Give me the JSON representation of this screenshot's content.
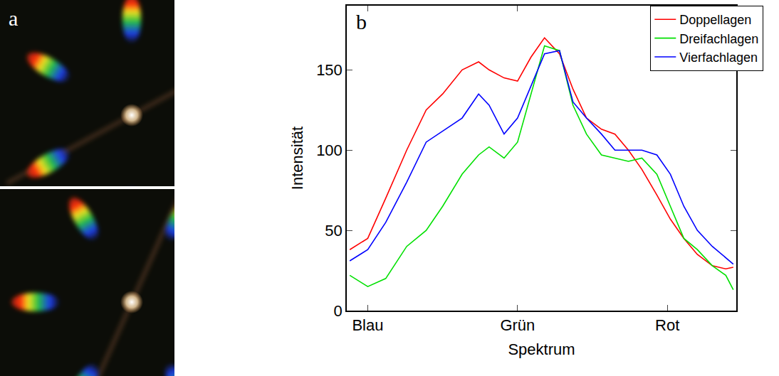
{
  "panel_a": {
    "label": "a"
  },
  "chart_data": {
    "type": "line",
    "panel_label": "b",
    "x_title": "Spektrum",
    "y_title": "Intensität",
    "x": [
      -0.12,
      0,
      0.12,
      0.26,
      0.39,
      0.5,
      0.63,
      0.74,
      0.81,
      0.91,
      1.0,
      1.09,
      1.18,
      1.28,
      1.37,
      1.46,
      1.56,
      1.65,
      1.74,
      1.83,
      1.93,
      2.02,
      2.11,
      2.2,
      2.3,
      2.39,
      2.44
    ],
    "series": [
      {
        "name": "Doppellagen",
        "color": "#ff0000",
        "values": [
          38,
          45,
          70,
          100,
          125,
          135,
          150,
          155,
          150,
          145,
          143,
          158,
          170,
          160,
          138,
          120,
          113,
          110,
          100,
          88,
          72,
          57,
          45,
          35,
          28,
          26,
          27
        ]
      },
      {
        "name": "Dreifachlagen",
        "color": "#00e000",
        "values": [
          22,
          15,
          20,
          40,
          50,
          65,
          85,
          97,
          102,
          95,
          105,
          135,
          165,
          162,
          128,
          110,
          97,
          95,
          93,
          95,
          85,
          65,
          45,
          38,
          28,
          22,
          13
        ]
      },
      {
        "name": "Vierfachlagen",
        "color": "#0000ff",
        "values": [
          31,
          38,
          55,
          80,
          105,
          112,
          120,
          135,
          128,
          110,
          120,
          140,
          160,
          162,
          130,
          120,
          110,
          100,
          100,
          100,
          97,
          85,
          65,
          50,
          40,
          33,
          29
        ]
      }
    ],
    "xlim": [
      -0.14,
      2.46
    ],
    "xticks": [
      {
        "value": 0,
        "label": "Blau"
      },
      {
        "value": 1,
        "label": "Grün"
      },
      {
        "value": 2,
        "label": "Rot"
      }
    ],
    "ylim": [
      0,
      190
    ],
    "yticks": [
      0,
      50,
      100,
      150
    ],
    "grid": false,
    "legend": "top right"
  }
}
